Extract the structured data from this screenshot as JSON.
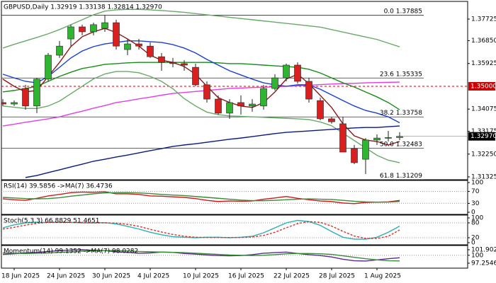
{
  "chart_data": [
    {
      "type": "candlestick",
      "title": "GBPUSD,Daily  1.32919 1.33138 1.32814 1.32970",
      "categories": [
        null,
        "18 Jun 2025",
        null,
        null,
        null,
        "24 Jun 2025",
        null,
        null,
        null,
        "30 Jun 2025",
        null,
        null,
        null,
        "4 Jul 2025",
        null,
        null,
        null,
        "10 Jul 2025",
        null,
        null,
        null,
        "16 Jul 2025",
        null,
        null,
        null,
        "22 Jul 2025",
        null,
        null,
        null,
        "28 Jul 2025",
        null,
        null,
        null,
        "1 Aug 2025",
        null,
        null
      ],
      "open": [
        1.3434,
        1.3428,
        1.3491,
        1.342,
        1.3529,
        1.3626,
        1.3692,
        1.3741,
        1.3721,
        1.3735,
        1.3758,
        1.3649,
        1.3672,
        1.3663,
        1.362,
        1.3597,
        1.3592,
        1.3577,
        1.3506,
        1.3448,
        1.3391,
        1.3434,
        1.342,
        1.342,
        1.3491,
        1.3534,
        1.3586,
        1.352,
        1.3442,
        1.3368,
        1.3348,
        1.3247,
        1.3204,
        1.3282,
        1.329,
        1.32919
      ],
      "high": [
        1.3448,
        1.3442,
        1.3506,
        1.3534,
        1.3635,
        1.3684,
        1.375,
        1.375,
        1.3758,
        1.3788,
        1.377,
        1.3692,
        1.3692,
        1.3678,
        1.3635,
        1.3615,
        1.3606,
        1.3592,
        1.352,
        1.3463,
        1.3448,
        1.3463,
        1.3448,
        1.3506,
        1.3549,
        1.3592,
        1.3597,
        1.3534,
        1.3454,
        1.3376,
        1.3376,
        1.3262,
        1.329,
        1.3305,
        1.3319,
        1.33138
      ],
      "low": [
        1.342,
        1.342,
        1.3405,
        1.3391,
        1.352,
        1.3615,
        1.3663,
        1.3707,
        1.3707,
        1.3721,
        1.3649,
        1.3626,
        1.3649,
        1.3615,
        1.3563,
        1.3577,
        1.3563,
        1.35,
        1.3434,
        1.3385,
        1.3368,
        1.3385,
        1.3397,
        1.3405,
        1.3483,
        1.352,
        1.3511,
        1.3434,
        1.3362,
        1.3348,
        1.3233,
        1.3184,
        1.3144,
        1.3262,
        1.3276,
        1.32814
      ],
      "close": [
        1.3428,
        1.3434,
        1.342,
        1.3529,
        1.3626,
        1.3663,
        1.3741,
        1.3721,
        1.375,
        1.3758,
        1.3663,
        1.3672,
        1.3663,
        1.362,
        1.3597,
        1.3592,
        1.3586,
        1.3506,
        1.3448,
        1.3391,
        1.3434,
        1.342,
        1.3428,
        1.3491,
        1.3534,
        1.3586,
        1.352,
        1.3448,
        1.3368,
        1.3356,
        1.3233,
        1.319,
        1.3282,
        1.329,
        1.3292,
        1.3297
      ],
      "up_color": "#2fb52f",
      "down_color": "#d82020",
      "series": [
        {
          "color": "#6aa86a",
          "values": [
            1.3655,
            1.367,
            1.3684,
            1.3698,
            1.3713,
            1.373,
            1.375,
            1.377,
            1.379,
            1.3805,
            1.381,
            1.3812,
            1.3812,
            1.381,
            1.3807,
            1.3804,
            1.38,
            1.3795,
            1.379,
            1.3785,
            1.378,
            1.3775,
            1.377,
            1.3765,
            1.376,
            1.3755,
            1.375,
            1.3745,
            1.374,
            1.373,
            1.372,
            1.371,
            1.37,
            1.369,
            1.3675,
            1.366
          ]
        },
        {
          "color": "#6aa86a",
          "values": [
            1.342,
            1.3415,
            1.341,
            1.341,
            1.342,
            1.344,
            1.347,
            1.35,
            1.353,
            1.355,
            1.356,
            1.356,
            1.3555,
            1.354,
            1.352,
            1.349,
            1.345,
            1.342,
            1.3395,
            1.3385,
            1.338,
            1.3378,
            1.3376,
            1.3374,
            1.3372,
            1.337,
            1.3368,
            1.3365,
            1.3355,
            1.334,
            1.331,
            1.328,
            1.325,
            1.322,
            1.32,
            1.319
          ]
        },
        {
          "color": "#e23ee2",
          "values": [
            1.3339,
            1.3346,
            1.3354,
            1.3361,
            1.3368,
            1.3376,
            1.3388,
            1.3399,
            1.3411,
            1.3422,
            1.3434,
            1.3441,
            1.3449,
            1.3456,
            1.3464,
            1.3471,
            1.3475,
            1.3479,
            1.3483,
            1.3487,
            1.3491,
            1.3493,
            1.3495,
            1.3496,
            1.3498,
            1.35,
            1.3502,
            1.3504,
            1.3507,
            1.3509,
            1.3511,
            1.3512,
            1.3514,
            1.3515,
            1.3516,
            1.3517
          ]
        },
        {
          "color": "#0a1a7a",
          "values": [
            null,
            null,
            1.313,
            1.3138,
            1.315,
            1.3161,
            1.3173,
            1.3184,
            1.3196,
            1.3204,
            1.3213,
            1.3221,
            1.323,
            1.3239,
            1.3247,
            1.3256,
            1.3262,
            1.3267,
            1.3273,
            1.3279,
            1.3285,
            1.329,
            1.3296,
            1.3302,
            1.3308,
            1.3313,
            1.3316,
            1.3319,
            1.3322,
            1.3325,
            1.3328,
            1.3331,
            1.3333,
            1.3333,
            1.3336,
            1.3339
          ]
        },
        {
          "color": "#1a8a1a",
          "values": [
            1.3477,
            1.3483,
            1.3491,
            1.35,
            1.352,
            1.354,
            1.3557,
            1.3572,
            1.358,
            1.3589,
            1.3592,
            1.3595,
            1.3597,
            1.3597,
            1.3597,
            1.3597,
            1.3597,
            1.3597,
            1.3597,
            1.3595,
            1.3592,
            1.3592,
            1.3589,
            1.3586,
            1.3583,
            1.358,
            1.3577,
            1.3569,
            1.3554,
            1.3534,
            1.3514,
            1.3497,
            1.3477,
            1.3457,
            1.3434,
            1.3405
          ]
        },
        {
          "color": "#1a3fd0",
          "values": [
            1.3549,
            1.3534,
            1.352,
            1.3514,
            1.354,
            1.3577,
            1.3615,
            1.3643,
            1.3661,
            1.3672,
            1.3678,
            1.3684,
            1.3684,
            1.3681,
            1.3678,
            1.3669,
            1.3655,
            1.3635,
            1.3609,
            1.3586,
            1.3563,
            1.3546,
            1.3529,
            1.3514,
            1.3506,
            1.35,
            1.3506,
            1.3506,
            1.3488,
            1.3465,
            1.3442,
            1.342,
            1.3402,
            1.3391,
            1.3376,
            1.3352
          ]
        },
        {
          "color": "#8b1a1a",
          "values": [
            1.3529,
            1.35,
            1.3477,
            1.3483,
            1.354,
            1.3597,
            1.3661,
            1.3701,
            1.3721,
            1.3735,
            1.3718,
            1.3692,
            1.3663,
            1.3626,
            1.3606,
            1.3597,
            1.358,
            1.3549,
            1.35,
            1.3454,
            1.3434,
            1.342,
            1.3414,
            1.3434,
            1.3477,
            1.3529,
            1.3549,
            1.3511,
            1.3463,
            1.3414,
            1.3348,
            1.3299,
            1.3282,
            1.3276,
            1.3262,
            1.3276
          ]
        }
      ],
      "fib_levels": [
        {
          "level": "0.0",
          "value": 1.37885
        },
        {
          "level": "23.6",
          "value": 1.35335
        },
        {
          "level": "38.2",
          "value": 1.33758
        },
        {
          "level": "50.0",
          "value": 1.32483
        },
        {
          "level": "61.8",
          "value": 1.31209
        }
      ],
      "hline": {
        "value": 1.35,
        "label": "1.35000",
        "color": "#cc0000"
      },
      "last_price": {
        "value": 1.3297,
        "label": "1.32970"
      },
      "ylim": [
        1.31239,
        1.38414
      ],
      "yticks": [
        1.37725,
        {
          "value": 1.3685,
          "label": "1.36850"
        },
        1.35925,
        1.34075,
        1.33175,
        {
          "value": 1.3225,
          "label": "1.32250"
        },
        1.31325
      ]
    },
    {
      "type": "line",
      "title": "RSI(14) 39.5856 ->MA(7) 36.4736",
      "series": [
        {
          "color": "#cc1a1a",
          "values": [
            45,
            42,
            40,
            47,
            55,
            60,
            66,
            68,
            67,
            69,
            62,
            62,
            60,
            55,
            54,
            52,
            50,
            46,
            40,
            36,
            38,
            37,
            38,
            44,
            48,
            53,
            47,
            42,
            38,
            36,
            31,
            29,
            33,
            34,
            35,
            39.5856
          ]
        },
        {
          "color": "#3a8a3a",
          "values": [
            50,
            48,
            46,
            45,
            46,
            49,
            54,
            58,
            62,
            65,
            66,
            66,
            65,
            63,
            60,
            58,
            56,
            53,
            50,
            47,
            44,
            41,
            39,
            39,
            40,
            42,
            44,
            45,
            44,
            43,
            40,
            37,
            35,
            34,
            34,
            36.4736
          ]
        }
      ],
      "ylim": [
        0,
        100
      ],
      "yticks": [
        100,
        70,
        30,
        0
      ],
      "grid_ticks": [
        70,
        30
      ]
    },
    {
      "type": "line",
      "title": "Stoch(5,3,3) 66.8829 51.4651",
      "series": [
        {
          "color": "#2ab0b0",
          "values": [
            60,
            72,
            80,
            82,
            82,
            82,
            82,
            80,
            80,
            81,
            76,
            66,
            55,
            42,
            32,
            24,
            22,
            20,
            22,
            22,
            20,
            22,
            26,
            40,
            60,
            80,
            90,
            85,
            70,
            45,
            22,
            14,
            14,
            22,
            42,
            66.8829
          ]
        },
        {
          "color": "#dd3030",
          "dashed": true,
          "values": [
            55,
            62,
            71,
            78,
            82,
            82,
            82,
            81,
            80,
            80,
            79,
            74,
            66,
            54,
            43,
            33,
            26,
            22,
            21,
            21,
            21,
            21,
            23,
            29,
            42,
            60,
            77,
            85,
            82,
            67,
            46,
            27,
            17,
            17,
            26,
            51.4651
          ]
        }
      ],
      "ylim": [
        0,
        100
      ],
      "yticks": [
        100,
        80,
        20,
        0
      ],
      "grid_ticks": [
        80,
        20
      ]
    },
    {
      "type": "line",
      "title": "Momentum(14) 99.1352 ->MA(7) 98.0282",
      "series": [
        {
          "color": "#5a2a8a",
          "values": [
            100.3,
            100.5,
            100.8,
            101.0,
            101.3,
            101.6,
            101.8,
            101.9,
            101.7,
            101.6,
            101.2,
            101.0,
            100.7,
            100.8,
            101.1,
            101.0,
            100.6,
            100.4,
            100.1,
            99.9,
            99.8,
            99.9,
            100.2,
            100.7,
            100.9,
            101.1,
            100.6,
            100.2,
            99.9,
            99.4,
            98.6,
            98.1,
            98.0,
            98.4,
            98.8,
            99.1352
          ]
        },
        {
          "color": "#3a8a3a",
          "values": [
            100.8,
            100.7,
            100.6,
            100.7,
            100.8,
            101.0,
            101.2,
            101.4,
            101.5,
            101.6,
            101.6,
            101.5,
            101.3,
            101.2,
            101.1,
            101.0,
            100.9,
            100.7,
            100.5,
            100.3,
            100.1,
            100.0,
            99.9,
            100.0,
            100.2,
            100.5,
            100.6,
            100.6,
            100.5,
            100.3,
            99.8,
            99.3,
            98.8,
            98.4,
            98.1,
            98.0282
          ]
        }
      ],
      "ylim": [
        95.54,
        103.37
      ],
      "yticks": [
        101.9022,
        100,
        97.2546
      ],
      "grid_ticks": [
        100
      ]
    }
  ]
}
